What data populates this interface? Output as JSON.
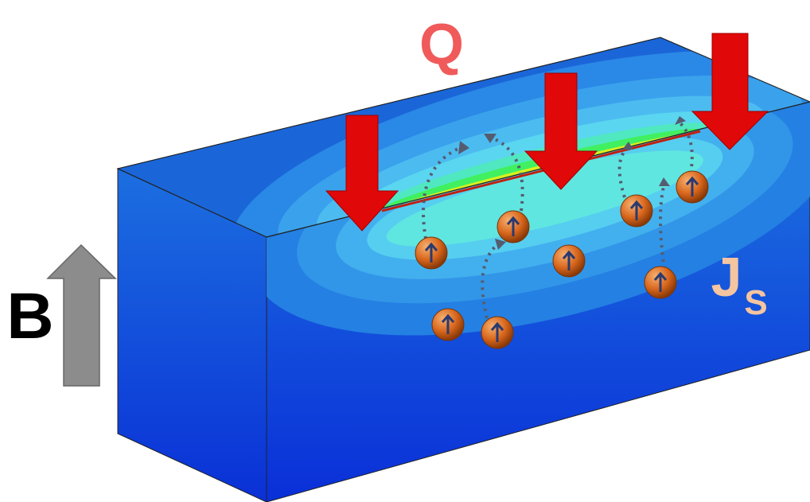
{
  "labels": {
    "heat": "Q",
    "field": "B",
    "spin_current": "J",
    "spin_current_sub": "S"
  }
}
